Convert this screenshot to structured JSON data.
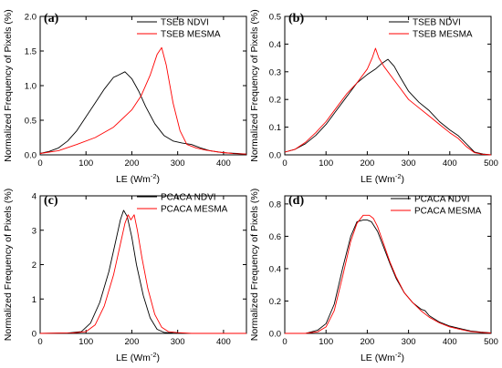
{
  "chart_data": [
    {
      "type": "line",
      "panel_label": "(a)",
      "xlabel": "LE (Wm",
      "xlabel_sup": "-2",
      "xlabel_close": ")",
      "ylabel": "Normalized Frequency of Pixels (%)",
      "xlim": [
        0,
        450
      ],
      "ylim": [
        0,
        2.0
      ],
      "xticks": [
        0,
        100,
        200,
        300,
        400
      ],
      "yticks": [
        0.0,
        0.5,
        1.0,
        1.5,
        2.0
      ],
      "ytick_labels": [
        "0.0",
        "0.5",
        "1.0",
        "1.5",
        "2.0"
      ],
      "grid": false,
      "legend_position": "top-right",
      "series": [
        {
          "name": "TSEB NDVI",
          "color": "#000000",
          "points": [
            [
              0,
              0.02
            ],
            [
              20,
              0.05
            ],
            [
              40,
              0.1
            ],
            [
              60,
              0.2
            ],
            [
              80,
              0.35
            ],
            [
              100,
              0.55
            ],
            [
              120,
              0.75
            ],
            [
              140,
              0.95
            ],
            [
              160,
              1.12
            ],
            [
              170,
              1.15
            ],
            [
              185,
              1.2
            ],
            [
              200,
              1.1
            ],
            [
              215,
              0.92
            ],
            [
              230,
              0.7
            ],
            [
              250,
              0.45
            ],
            [
              270,
              0.28
            ],
            [
              290,
              0.2
            ],
            [
              310,
              0.17
            ],
            [
              330,
              0.15
            ],
            [
              350,
              0.1
            ],
            [
              370,
              0.06
            ],
            [
              400,
              0.03
            ],
            [
              430,
              0.02
            ],
            [
              450,
              0.01
            ]
          ]
        },
        {
          "name": "TSEB MESMA",
          "color": "#ff0000",
          "points": [
            [
              0,
              0.02
            ],
            [
              40,
              0.06
            ],
            [
              80,
              0.15
            ],
            [
              120,
              0.25
            ],
            [
              160,
              0.4
            ],
            [
              200,
              0.65
            ],
            [
              220,
              0.85
            ],
            [
              240,
              1.15
            ],
            [
              255,
              1.45
            ],
            [
              265,
              1.55
            ],
            [
              275,
              1.3
            ],
            [
              290,
              0.75
            ],
            [
              305,
              0.35
            ],
            [
              320,
              0.15
            ],
            [
              340,
              0.1
            ],
            [
              360,
              0.07
            ],
            [
              390,
              0.04
            ],
            [
              420,
              0.02
            ],
            [
              450,
              0.01
            ]
          ]
        }
      ]
    },
    {
      "type": "line",
      "panel_label": "(b)",
      "xlabel": "LE (Wm",
      "xlabel_sup": "-2",
      "xlabel_close": ")",
      "ylabel": "Normalized Frequency of Pixels (%)",
      "xlim": [
        0,
        500
      ],
      "ylim": [
        0,
        0.5
      ],
      "xticks": [
        0,
        100,
        200,
        300,
        400,
        500
      ],
      "yticks": [
        0.0,
        0.1,
        0.2,
        0.3,
        0.4,
        0.5
      ],
      "ytick_labels": [
        "0.0",
        "0.1",
        "0.2",
        "0.3",
        "0.4",
        "0.5"
      ],
      "grid": false,
      "legend_position": "top-right",
      "series": [
        {
          "name": "TSEB NDVI",
          "color": "#000000",
          "points": [
            [
              0,
              0.01
            ],
            [
              25,
              0.02
            ],
            [
              50,
              0.04
            ],
            [
              75,
              0.07
            ],
            [
              100,
              0.11
            ],
            [
              125,
              0.16
            ],
            [
              150,
              0.21
            ],
            [
              175,
              0.26
            ],
            [
              200,
              0.29
            ],
            [
              220,
              0.31
            ],
            [
              235,
              0.33
            ],
            [
              250,
              0.345
            ],
            [
              265,
              0.32
            ],
            [
              280,
              0.28
            ],
            [
              300,
              0.23
            ],
            [
              325,
              0.19
            ],
            [
              350,
              0.16
            ],
            [
              375,
              0.12
            ],
            [
              400,
              0.09
            ],
            [
              420,
              0.07
            ],
            [
              440,
              0.04
            ],
            [
              460,
              0.01
            ],
            [
              480,
              0.003
            ],
            [
              500,
              0.0
            ]
          ]
        },
        {
          "name": "TSEB MESMA",
          "color": "#ff0000",
          "points": [
            [
              0,
              0.01
            ],
            [
              25,
              0.02
            ],
            [
              50,
              0.045
            ],
            [
              75,
              0.08
            ],
            [
              100,
              0.12
            ],
            [
              125,
              0.17
            ],
            [
              150,
              0.22
            ],
            [
              175,
              0.26
            ],
            [
              200,
              0.31
            ],
            [
              212,
              0.35
            ],
            [
              220,
              0.385
            ],
            [
              228,
              0.35
            ],
            [
              240,
              0.32
            ],
            [
              260,
              0.28
            ],
            [
              280,
              0.24
            ],
            [
              300,
              0.2
            ],
            [
              325,
              0.17
            ],
            [
              350,
              0.14
            ],
            [
              375,
              0.11
            ],
            [
              400,
              0.08
            ],
            [
              420,
              0.06
            ],
            [
              440,
              0.03
            ],
            [
              460,
              0.008
            ],
            [
              480,
              0.002
            ],
            [
              500,
              0.0
            ]
          ]
        }
      ]
    },
    {
      "type": "line",
      "panel_label": "(c)",
      "xlabel": "LE (Wm",
      "xlabel_sup": "-2",
      "xlabel_close": ")",
      "ylabel": "Normalized Frequency of Pixels (%)",
      "xlim": [
        0,
        450
      ],
      "ylim": [
        0,
        4.0
      ],
      "xticks": [
        0,
        100,
        200,
        300,
        400
      ],
      "yticks": [
        0,
        1,
        2,
        3,
        4
      ],
      "ytick_labels": [
        "0",
        "1",
        "2",
        "3",
        "4"
      ],
      "grid": false,
      "legend_position": "top-right",
      "series": [
        {
          "name": "PCACA NDVI",
          "color": "#000000",
          "points": [
            [
              0,
              0
            ],
            [
              60,
              0.01
            ],
            [
              90,
              0.05
            ],
            [
              110,
              0.3
            ],
            [
              130,
              0.9
            ],
            [
              150,
              1.8
            ],
            [
              165,
              2.7
            ],
            [
              175,
              3.3
            ],
            [
              182,
              3.58
            ],
            [
              190,
              3.4
            ],
            [
              200,
              2.8
            ],
            [
              210,
              2.0
            ],
            [
              225,
              1.1
            ],
            [
              240,
              0.45
            ],
            [
              255,
              0.12
            ],
            [
              270,
              0.03
            ],
            [
              290,
              0.01
            ],
            [
              320,
              0.0
            ],
            [
              450,
              0.0
            ]
          ]
        },
        {
          "name": "PCACA MESMA",
          "color": "#ff0000",
          "points": [
            [
              0,
              0
            ],
            [
              70,
              0.01
            ],
            [
              100,
              0.05
            ],
            [
              120,
              0.25
            ],
            [
              140,
              0.8
            ],
            [
              160,
              1.7
            ],
            [
              175,
              2.6
            ],
            [
              185,
              3.2
            ],
            [
              192,
              3.45
            ],
            [
              198,
              3.3
            ],
            [
              205,
              3.45
            ],
            [
              212,
              3.0
            ],
            [
              222,
              2.2
            ],
            [
              235,
              1.3
            ],
            [
              250,
              0.55
            ],
            [
              265,
              0.18
            ],
            [
              280,
              0.05
            ],
            [
              300,
              0.02
            ],
            [
              330,
              0.0
            ],
            [
              450,
              0.0
            ]
          ]
        }
      ]
    },
    {
      "type": "line",
      "panel_label": "(d)",
      "xlabel": "LE (Wm",
      "xlabel_sup": "-2",
      "xlabel_close": ")",
      "ylabel": "Normalized Frequency of Pixels (%)",
      "xlim": [
        0,
        500
      ],
      "ylim": [
        0,
        0.85
      ],
      "xticks": [
        0,
        100,
        200,
        300,
        400,
        500
      ],
      "yticks": [
        0.0,
        0.2,
        0.4,
        0.6,
        0.8
      ],
      "ytick_labels": [
        "0.0",
        "0.2",
        "0.4",
        "0.6",
        "0.8"
      ],
      "grid": false,
      "legend_position": "top-right",
      "series": [
        {
          "name": "PCACA NDVI",
          "color": "#000000",
          "points": [
            [
              0,
              0
            ],
            [
              50,
              0.0
            ],
            [
              80,
              0.02
            ],
            [
              100,
              0.06
            ],
            [
              120,
              0.18
            ],
            [
              140,
              0.4
            ],
            [
              160,
              0.6
            ],
            [
              175,
              0.69
            ],
            [
              190,
              0.7
            ],
            [
              200,
              0.7
            ],
            [
              210,
              0.69
            ],
            [
              225,
              0.63
            ],
            [
              240,
              0.53
            ],
            [
              255,
              0.43
            ],
            [
              270,
              0.34
            ],
            [
              290,
              0.25
            ],
            [
              310,
              0.19
            ],
            [
              330,
              0.15
            ],
            [
              340,
              0.14
            ],
            [
              350,
              0.11
            ],
            [
              375,
              0.07
            ],
            [
              400,
              0.045
            ],
            [
              425,
              0.03
            ],
            [
              450,
              0.015
            ],
            [
              475,
              0.008
            ],
            [
              500,
              0.003
            ]
          ]
        },
        {
          "name": "PCACA MESMA",
          "color": "#ff0000",
          "points": [
            [
              0,
              0
            ],
            [
              50,
              0.0
            ],
            [
              80,
              0.01
            ],
            [
              100,
              0.04
            ],
            [
              120,
              0.14
            ],
            [
              140,
              0.35
            ],
            [
              160,
              0.57
            ],
            [
              175,
              0.68
            ],
            [
              190,
              0.73
            ],
            [
              205,
              0.73
            ],
            [
              215,
              0.71
            ],
            [
              225,
              0.66
            ],
            [
              240,
              0.55
            ],
            [
              255,
              0.44
            ],
            [
              270,
              0.35
            ],
            [
              290,
              0.25
            ],
            [
              310,
              0.19
            ],
            [
              330,
              0.14
            ],
            [
              350,
              0.1
            ],
            [
              375,
              0.065
            ],
            [
              400,
              0.04
            ],
            [
              425,
              0.025
            ],
            [
              450,
              0.012
            ],
            [
              475,
              0.006
            ],
            [
              500,
              0.002
            ]
          ]
        }
      ]
    }
  ]
}
